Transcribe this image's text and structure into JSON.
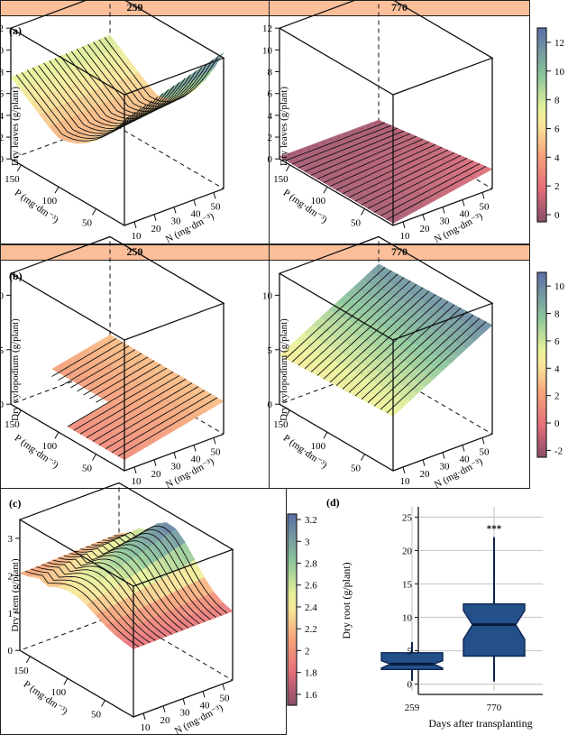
{
  "figure": {
    "row_a": {
      "panel_label": "(a)",
      "strips": [
        "259",
        "770"
      ],
      "zlabel": "Dry leaves (g/plant)"
    },
    "row_b": {
      "panel_label": "(b)",
      "strips": [
        "259",
        "770"
      ],
      "zlabel": "Dry xylopodium (g/plant)"
    },
    "panel_c": {
      "panel_label": "(c)",
      "zlabel": "Dry stem (g/plant)"
    },
    "panel_d": {
      "panel_label": "(d)"
    },
    "xlabel_p": "P (mg·dm⁻³)",
    "xlabel_n": "N (mg·dm⁻³)",
    "p_ticks": [
      "50",
      "100",
      "150"
    ],
    "n_ticks": [
      "10",
      "20",
      "30",
      "40",
      "50"
    ]
  },
  "chart_data": [
    {
      "type": "surface3d",
      "panel": "a",
      "facet": "259",
      "title": "",
      "xlabel": "N (mg·dm⁻³)",
      "ylabel": "P (mg·dm⁻³)",
      "zlabel": "Dry leaves (g/plant)",
      "zlim": [
        0,
        12
      ],
      "z_ticks": [
        0,
        2,
        4,
        6,
        8,
        10,
        12
      ],
      "n_range": [
        10,
        55
      ],
      "p_range": [
        25,
        175
      ],
      "description": "U-shaped surface along P; minimum ~4 near P=100, rising to ~7 at P=175 and ~12 at P=25; weak N effect",
      "z_samples": {
        "p": [
          25,
          100,
          175
        ],
        "z_at_n10": [
          11.5,
          4.5,
          7
        ],
        "z_at_n55": [
          12,
          5,
          7.5
        ]
      }
    },
    {
      "type": "surface3d",
      "panel": "a",
      "facet": "770",
      "zlabel": "Dry leaves (g/plant)",
      "zlim": [
        0,
        12
      ],
      "z_ticks": [
        0,
        2,
        4,
        6,
        8,
        10,
        12
      ],
      "description": "Nearly flat surface near 0–2 g/plant, slight rise toward high N/low P",
      "z_samples": {
        "p": [
          25,
          175
        ],
        "z_at_n10": [
          0.3,
          0.2
        ],
        "z_at_n55": [
          1.8,
          0.5
        ]
      }
    },
    {
      "type": "colorbar",
      "panel": "a",
      "range": [
        -0.5,
        13
      ],
      "ticks": [
        0,
        2,
        4,
        6,
        8,
        10,
        12
      ]
    },
    {
      "type": "surface3d",
      "panel": "b",
      "facet": "259",
      "zlabel": "Dry xylopodium (g/plant)",
      "zlim": [
        0,
        12
      ],
      "z_ticks": [
        0,
        5,
        10
      ],
      "description": "Low planar surface ~1–3 g/plant, increasing with N; white (missing) region at high P / low N",
      "z_samples": {
        "corner_low_n_low_p": 1,
        "corner_high_n_low_p": 3,
        "corner_high_n_high_p": 3
      }
    },
    {
      "type": "surface3d",
      "panel": "b",
      "facet": "770",
      "zlabel": "Dry xylopodium (g/plant)",
      "zlim": [
        0,
        12
      ],
      "z_ticks": [
        0,
        5,
        10
      ],
      "description": "Tilted plane rising with N from ~5 to ~10 g/plant",
      "z_samples": {
        "n_low": 5,
        "n_high": 10
      }
    },
    {
      "type": "colorbar",
      "panel": "b",
      "range": [
        -2.5,
        11
      ],
      "ticks": [
        -2,
        0,
        2,
        4,
        6,
        8,
        10
      ]
    },
    {
      "type": "surface3d",
      "panel": "c",
      "zlabel": "Dry stem (g/plant)",
      "zlim": [
        0,
        3.5
      ],
      "z_ticks": [
        0,
        1,
        2,
        3
      ],
      "description": "Ridge surface peaking ~3.2 at mid P / high N; ~2 at high P, ~1.8 at low P / low N",
      "z_samples": {
        "peak": 3.2,
        "high_p_edge": 2.1,
        "low_p_low_n": 1.8
      }
    },
    {
      "type": "colorbar",
      "panel": "c",
      "range": [
        1.5,
        3.25
      ],
      "ticks": [
        1.6,
        1.8,
        2.0,
        2.2,
        2.4,
        2.6,
        2.8,
        3.0,
        3.2
      ]
    },
    {
      "type": "boxplot",
      "panel": "d",
      "title": "",
      "xlabel": "Days after transplanting",
      "ylabel": "Dry root (g/plant)",
      "categories": [
        "259",
        "770"
      ],
      "ylim": [
        -1,
        26
      ],
      "y_ticks": [
        0,
        5,
        10,
        15,
        20,
        25
      ],
      "notched": true,
      "boxes": [
        {
          "name": "259",
          "min": 0.5,
          "q1": 2.2,
          "median": 3.0,
          "q3": 4.7,
          "max": 6.3,
          "notch_low": 2.4,
          "notch_high": 3.5
        },
        {
          "name": "770",
          "min": 0.4,
          "q1": 4.2,
          "median": 8.9,
          "q3": 12.0,
          "max": 22.0,
          "notch_low": 6.7,
          "notch_high": 11.0
        }
      ],
      "annotations": [
        {
          "category": "770",
          "text": "***"
        }
      ],
      "grid": true,
      "box_color": "#24508a"
    }
  ]
}
